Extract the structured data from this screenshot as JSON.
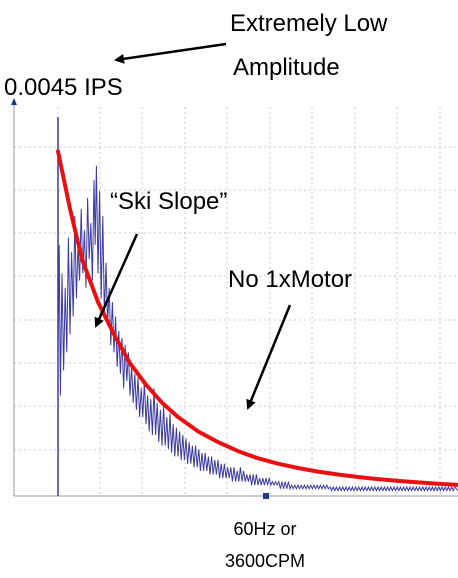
{
  "annotations": {
    "top_right_line1": "Extremely Low",
    "top_right_line2": "Amplitude",
    "amplitude": "0.0045 IPS",
    "ski_slope": "“Ski Slope”",
    "no_motor": "No 1xMotor",
    "x_line1": "60Hz or",
    "x_line2": "3600CPM"
  },
  "colors": {
    "spectrum": "#3a3aa0",
    "trend": "#e81010",
    "grid": "#c8c8c8",
    "axis_marker": "#1a3a8a",
    "annotation": "#000000"
  },
  "chart_data": {
    "type": "line",
    "title": "",
    "xlabel": "",
    "ylabel": "",
    "xlim": [
      0,
      100
    ],
    "ylim": [
      0,
      100
    ],
    "grid": true,
    "series": [
      {
        "kind": "spectrum",
        "points": [
          [
            0,
            0
          ],
          [
            0,
            40
          ],
          [
            0.3,
            70
          ],
          [
            0.6,
            28
          ],
          [
            1,
            62
          ],
          [
            1.4,
            35
          ],
          [
            1.8,
            58
          ],
          [
            2.2,
            40
          ],
          [
            2.6,
            72
          ],
          [
            3.0,
            45
          ],
          [
            3.4,
            68
          ],
          [
            3.8,
            50
          ],
          [
            4.2,
            78
          ],
          [
            4.6,
            55
          ],
          [
            5.0,
            70
          ],
          [
            5.4,
            60
          ],
          [
            5.8,
            80
          ],
          [
            6.2,
            62
          ],
          [
            6.6,
            74
          ],
          [
            7.0,
            58
          ],
          [
            7.4,
            83
          ],
          [
            7.8,
            66
          ],
          [
            8.2,
            76
          ],
          [
            8.6,
            60
          ],
          [
            9.0,
            88
          ],
          [
            9.3,
            70
          ],
          [
            9.6,
            92
          ],
          [
            10.0,
            62
          ],
          [
            10.4,
            85
          ],
          [
            10.8,
            55
          ],
          [
            11.2,
            78
          ],
          [
            11.6,
            50
          ],
          [
            12.0,
            65
          ],
          [
            12.4,
            48
          ],
          [
            12.8,
            58
          ],
          [
            13.2,
            42
          ],
          [
            13.6,
            54
          ],
          [
            14.0,
            40
          ],
          [
            14.4,
            50
          ],
          [
            14.8,
            36
          ],
          [
            15.2,
            46
          ],
          [
            15.6,
            34
          ],
          [
            16.0,
            44
          ],
          [
            16.4,
            30
          ],
          [
            16.8,
            42
          ],
          [
            17.2,
            32
          ],
          [
            17.6,
            40
          ],
          [
            18.0,
            28
          ],
          [
            18.4,
            36
          ],
          [
            18.8,
            26
          ],
          [
            19.2,
            34
          ],
          [
            19.6,
            24
          ],
          [
            20.0,
            33
          ],
          [
            20.4,
            22
          ],
          [
            20.8,
            30
          ],
          [
            21.2,
            22
          ],
          [
            21.6,
            32
          ],
          [
            22.0,
            20
          ],
          [
            22.4,
            28
          ],
          [
            22.8,
            18
          ],
          [
            23.2,
            27
          ],
          [
            23.6,
            17
          ],
          [
            24.0,
            30
          ],
          [
            24.4,
            17
          ],
          [
            24.8,
            26
          ],
          [
            25.2,
            15
          ],
          [
            25.6,
            24
          ],
          [
            26.0,
            14
          ],
          [
            26.4,
            25
          ],
          [
            26.8,
            14
          ],
          [
            27.2,
            22
          ],
          [
            27.6,
            13
          ],
          [
            28.0,
            23
          ],
          [
            28.4,
            12
          ],
          [
            28.8,
            20
          ],
          [
            29.2,
            11
          ],
          [
            29.6,
            19
          ],
          [
            30.0,
            11
          ],
          [
            30.4,
            18
          ],
          [
            30.8,
            10
          ],
          [
            31.2,
            17
          ],
          [
            31.6,
            10
          ],
          [
            32.0,
            16
          ],
          [
            32.4,
            9
          ],
          [
            32.8,
            15
          ],
          [
            33.2,
            9
          ],
          [
            33.6,
            14
          ],
          [
            34.0,
            8
          ],
          [
            34.4,
            14
          ],
          [
            34.8,
            8
          ],
          [
            35.2,
            13
          ],
          [
            35.6,
            7
          ],
          [
            36.0,
            12
          ],
          [
            36.4,
            7
          ],
          [
            36.8,
            12
          ],
          [
            37.2,
            7
          ],
          [
            37.6,
            11
          ],
          [
            38.0,
            6
          ],
          [
            38.4,
            11
          ],
          [
            38.8,
            6
          ],
          [
            39.2,
            10
          ],
          [
            39.6,
            6
          ],
          [
            40.0,
            10
          ],
          [
            40.4,
            5
          ],
          [
            40.8,
            9
          ],
          [
            41.2,
            5
          ],
          [
            41.6,
            9
          ],
          [
            42.0,
            5
          ],
          [
            42.4,
            8
          ],
          [
            42.8,
            5
          ],
          [
            43.2,
            8
          ],
          [
            43.6,
            4
          ],
          [
            44.0,
            8
          ],
          [
            44.4,
            4
          ],
          [
            44.8,
            7
          ],
          [
            45.2,
            4
          ],
          [
            45.6,
            8
          ],
          [
            46.0,
            4
          ],
          [
            46.4,
            7
          ],
          [
            46.8,
            4
          ],
          [
            47.2,
            6
          ],
          [
            47.6,
            4
          ],
          [
            48.0,
            6
          ],
          [
            48.4,
            3
          ],
          [
            48.8,
            6
          ],
          [
            49.2,
            3
          ],
          [
            49.6,
            6
          ],
          [
            50.0,
            3
          ],
          [
            50.4,
            5
          ],
          [
            50.8,
            3
          ],
          [
            51.2,
            5
          ],
          [
            51.6,
            3
          ],
          [
            52.0,
            5
          ],
          [
            52.4,
            3
          ],
          [
            52.8,
            5
          ],
          [
            53.2,
            3
          ],
          [
            53.6,
            4
          ],
          [
            54.0,
            3
          ],
          [
            54.4,
            4
          ],
          [
            54.8,
            3
          ],
          [
            55.2,
            4
          ],
          [
            55.6,
            2
          ],
          [
            56.0,
            4
          ],
          [
            56.4,
            2
          ],
          [
            56.8,
            4
          ],
          [
            57.2,
            2
          ],
          [
            57.6,
            4
          ],
          [
            58.0,
            2
          ],
          [
            58.4,
            3
          ],
          [
            58.8,
            2
          ],
          [
            59.2,
            3
          ],
          [
            59.6,
            2
          ],
          [
            60.0,
            3
          ],
          [
            60.4,
            2
          ],
          [
            60.8,
            3
          ],
          [
            61.2,
            2
          ],
          [
            61.6,
            3
          ],
          [
            62.0,
            2
          ],
          [
            62.4,
            3
          ],
          [
            62.8,
            2
          ],
          [
            63.2,
            3
          ],
          [
            63.6,
            2
          ],
          [
            64.0,
            3
          ],
          [
            64.4,
            2
          ],
          [
            64.8,
            3
          ],
          [
            65.2,
            2
          ],
          [
            65.6,
            3
          ],
          [
            66.0,
            2
          ],
          [
            66.4,
            3
          ],
          [
            66.8,
            2
          ],
          [
            67.2,
            3
          ],
          [
            67.6,
            2
          ],
          [
            68.0,
            2.5
          ],
          [
            68.4,
            1.5
          ],
          [
            68.8,
            2.5
          ],
          [
            69.2,
            1.5
          ],
          [
            69.6,
            2.5
          ],
          [
            70.0,
            1.5
          ],
          [
            70.4,
            2.5
          ],
          [
            70.8,
            1.5
          ],
          [
            71.2,
            2.5
          ],
          [
            71.6,
            1.5
          ],
          [
            72.0,
            2.5
          ],
          [
            72.4,
            1.5
          ],
          [
            72.8,
            2.5
          ],
          [
            73.2,
            1.5
          ],
          [
            73.6,
            2.5
          ],
          [
            74.0,
            1.5
          ],
          [
            74.4,
            2.5
          ],
          [
            74.8,
            1.5
          ],
          [
            75.2,
            2.5
          ],
          [
            75.6,
            1.5
          ],
          [
            76.0,
            2.5
          ],
          [
            76.4,
            1.5
          ],
          [
            76.8,
            2.5
          ],
          [
            77.2,
            1.5
          ],
          [
            77.6,
            2.5
          ],
          [
            78.0,
            1.5
          ],
          [
            78.4,
            2.5
          ],
          [
            78.8,
            1.5
          ],
          [
            79.2,
            2.5
          ],
          [
            79.6,
            1.5
          ],
          [
            80.0,
            2.5
          ],
          [
            80.4,
            1.5
          ],
          [
            80.8,
            2.5
          ],
          [
            81.2,
            1.5
          ],
          [
            81.6,
            2.5
          ],
          [
            82.0,
            1.5
          ],
          [
            82.4,
            2.5
          ],
          [
            82.8,
            1.5
          ],
          [
            83.2,
            2.5
          ],
          [
            83.6,
            1.5
          ],
          [
            84.0,
            2.5
          ],
          [
            84.4,
            1.5
          ],
          [
            84.8,
            2.5
          ],
          [
            85.2,
            1.5
          ],
          [
            85.6,
            2.5
          ],
          [
            86.0,
            1.5
          ],
          [
            86.4,
            2.5
          ],
          [
            86.8,
            1.5
          ],
          [
            87.2,
            2.5
          ],
          [
            87.6,
            1.5
          ],
          [
            88.0,
            2.5
          ],
          [
            88.4,
            1.5
          ],
          [
            88.8,
            2.5
          ],
          [
            89.2,
            1.5
          ],
          [
            89.6,
            2.5
          ],
          [
            90.0,
            1.5
          ],
          [
            90.4,
            2.5
          ],
          [
            90.8,
            1.5
          ],
          [
            91.2,
            2.5
          ],
          [
            91.6,
            1.5
          ],
          [
            92.0,
            2.5
          ],
          [
            92.4,
            1.5
          ],
          [
            92.8,
            2.5
          ],
          [
            93.2,
            1.5
          ],
          [
            93.6,
            2.5
          ],
          [
            94.0,
            1.5
          ],
          [
            94.4,
            2.5
          ],
          [
            94.8,
            1.5
          ],
          [
            95.2,
            2.5
          ],
          [
            95.6,
            1.5
          ],
          [
            96.0,
            2.5
          ],
          [
            96.4,
            1.5
          ],
          [
            96.8,
            2.5
          ],
          [
            97.2,
            1.5
          ],
          [
            97.6,
            2.5
          ],
          [
            98.0,
            1.5
          ],
          [
            98.4,
            2.5
          ],
          [
            98.8,
            1.5
          ],
          [
            99.2,
            2.5
          ],
          [
            100,
            1.5
          ]
        ]
      },
      {
        "kind": "trend",
        "points": [
          [
            0,
            96
          ],
          [
            3,
            80
          ],
          [
            6,
            66
          ],
          [
            10,
            54
          ],
          [
            14,
            45
          ],
          [
            18,
            37
          ],
          [
            22,
            31
          ],
          [
            26,
            26
          ],
          [
            30,
            22
          ],
          [
            35,
            18
          ],
          [
            40,
            15
          ],
          [
            45,
            12.5
          ],
          [
            50,
            10.5
          ],
          [
            55,
            9
          ],
          [
            60,
            7.8
          ],
          [
            65,
            6.8
          ],
          [
            70,
            6
          ],
          [
            75,
            5.3
          ],
          [
            80,
            4.7
          ],
          [
            85,
            4.2
          ],
          [
            90,
            3.8
          ],
          [
            95,
            3.4
          ],
          [
            100,
            3.1
          ]
        ]
      }
    ],
    "marker_x": 52
  }
}
